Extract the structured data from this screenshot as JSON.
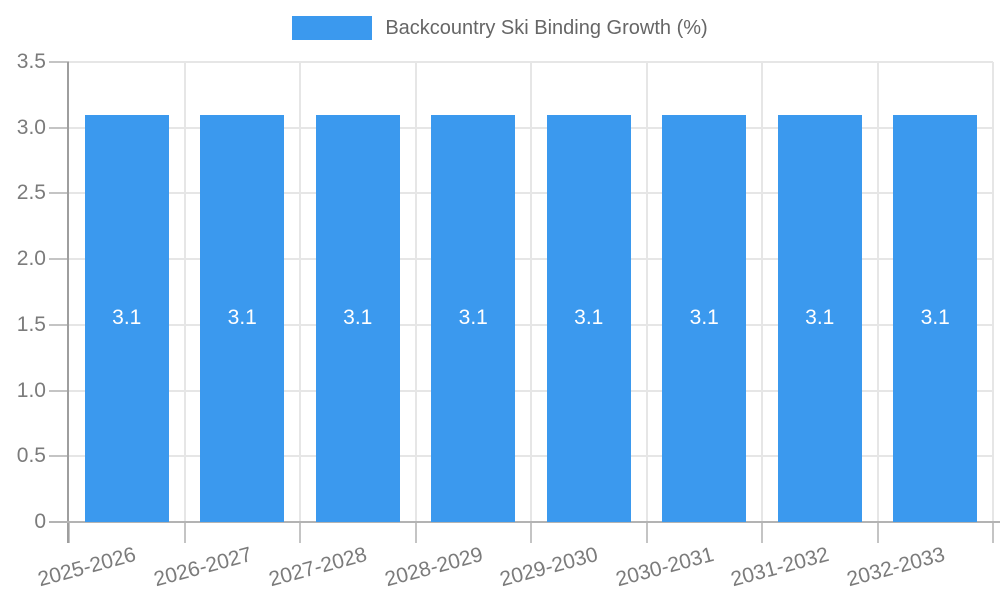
{
  "chart_data": {
    "type": "bar",
    "title": "",
    "legend_label": "Backcountry Ski Binding Growth (%)",
    "legend_position": "top",
    "categories": [
      "2025-2026",
      "2026-2027",
      "2027-2028",
      "2028-2029",
      "2029-2030",
      "2030-2031",
      "2031-2032",
      "2032-2033"
    ],
    "values": [
      3.1,
      3.1,
      3.1,
      3.1,
      3.1,
      3.1,
      3.1,
      3.1
    ],
    "value_labels": [
      "3.1",
      "3.1",
      "3.1",
      "3.1",
      "3.1",
      "3.1",
      "3.1",
      "3.1"
    ],
    "xlabel": "",
    "ylabel": "",
    "ylim": [
      0,
      3.5
    ],
    "grid": true,
    "yticks": [
      {
        "value": 0,
        "label": "0"
      },
      {
        "value": 0.5,
        "label": "0.5"
      },
      {
        "value": 1.0,
        "label": "1.0"
      },
      {
        "value": 1.5,
        "label": "1.5"
      },
      {
        "value": 2.0,
        "label": "2.0"
      },
      {
        "value": 2.5,
        "label": "2.5"
      },
      {
        "value": 3.0,
        "label": "3.0"
      },
      {
        "value": 3.5,
        "label": "3.5"
      }
    ],
    "colors": {
      "bar": "#3b99ee",
      "grid": "#e6e6e6",
      "axis": "#9e9e9e",
      "baseline": "#b3b3b3",
      "tick_mark": "#c4c4c4",
      "tick_text": "#7b7b7b",
      "legend_text": "#666666",
      "value_text": "#ffffff"
    }
  }
}
